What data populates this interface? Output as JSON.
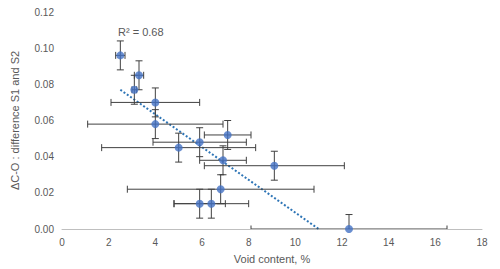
{
  "chart_data": {
    "type": "scatter",
    "x_label": "Void content, %",
    "y_label": "ΔC-O : difference S1 and S2",
    "annotation": "R² = 0.68",
    "color": "#4472c4",
    "marker": "circle",
    "grid": false,
    "x": [
      2.5,
      3.3,
      3.1,
      4.0,
      4.0,
      5.0,
      5.9,
      7.1,
      6.9,
      9.1,
      6.8,
      5.9,
      6.4,
      12.3
    ],
    "values": [
      0.096,
      0.085,
      0.077,
      0.07,
      0.058,
      0.045,
      0.048,
      0.052,
      0.038,
      0.035,
      0.022,
      0.014,
      0.014,
      0.0
    ],
    "x_error": [
      0.2,
      0.2,
      0.1,
      1.9,
      2.9,
      3.3,
      2.0,
      1.0,
      1.0,
      3.0,
      4.0,
      1.1,
      1.6,
      4.2
    ],
    "y_error": [
      0.008,
      0.008,
      0.008,
      0.008,
      0.008,
      0.008,
      0.008,
      0.008,
      0.008,
      0.008,
      0.008,
      0.008,
      0.008,
      0.008
    ],
    "trendline": {
      "x": [
        2.5,
        11.0
      ],
      "y": [
        0.077,
        0.0
      ],
      "color": "#2e75b6",
      "line_style": "dotted"
    },
    "xlim": [
      0,
      18
    ],
    "xticks": [
      0,
      2,
      4,
      6,
      8,
      10,
      12,
      14,
      16,
      18
    ],
    "ylim": [
      0,
      0.12
    ],
    "yticks": [
      {
        "value": 0,
        "label": "0.00"
      },
      {
        "value": 0.02,
        "label": "0.02"
      },
      {
        "value": 0.04,
        "label": "0.04"
      },
      {
        "value": 0.06,
        "label": "0.06"
      },
      {
        "value": 0.08,
        "label": "0.08"
      },
      {
        "value": 0.1,
        "label": "0.10"
      },
      {
        "value": 0.12,
        "label": "0.12"
      }
    ]
  }
}
